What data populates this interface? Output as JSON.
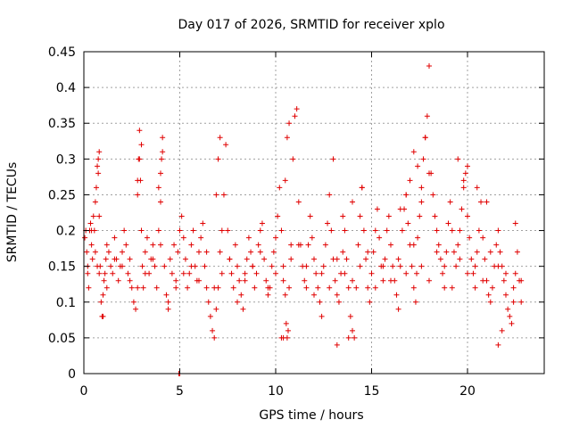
{
  "chart_data": {
    "type": "scatter",
    "title": "Day 017 of 2026, SRMTID for receiver xplo",
    "xlabel": "GPS time / hours",
    "ylabel": "SRMTID / TECUs",
    "xlim": [
      0,
      24
    ],
    "ylim": [
      0,
      0.45
    ],
    "xticks": [
      0,
      5,
      10,
      15,
      20
    ],
    "xtick_labels": [
      "0",
      "5",
      "10",
      "15",
      "20"
    ],
    "yticks": [
      0,
      0.05,
      0.1,
      0.15,
      0.2,
      0.25,
      0.3,
      0.35,
      0.4,
      0.45
    ],
    "ytick_labels": [
      "0",
      "0.05",
      "0.1",
      "0.15",
      "0.2",
      "0.25",
      "0.3",
      "0.35",
      "0.4",
      "0.45"
    ],
    "grid": true,
    "marker": "+",
    "color": "#e00000",
    "series": [
      {
        "x": [
          0.05,
          0.1,
          0.15,
          0.2,
          0.25,
          0.3,
          0.35,
          0.4,
          0.45,
          0.5,
          0.55,
          0.6,
          0.65,
          0.7,
          0.75,
          0.8,
          0.85,
          0.9,
          0.95,
          1.0,
          1.05,
          1.1,
          1.15,
          1.2,
          1.3,
          1.4,
          1.5,
          1.6,
          1.7,
          1.8,
          1.9,
          2.0,
          2.1,
          2.2,
          2.3,
          2.4,
          2.5,
          2.6,
          2.7,
          2.8,
          2.85,
          2.9,
          2.95,
          3.0,
          3.05,
          3.1,
          3.2,
          3.3,
          3.4,
          3.5,
          3.6,
          3.7,
          3.8,
          3.9,
          4.0,
          4.05,
          4.1,
          4.2,
          4.3,
          4.4,
          4.5,
          4.6,
          4.7,
          4.8,
          4.9,
          5.0,
          5.1,
          5.2,
          5.3,
          5.4,
          5.5,
          5.6,
          5.7,
          5.8,
          5.9,
          6.0,
          6.1,
          6.2,
          6.3,
          6.4,
          6.5,
          6.6,
          6.7,
          6.8,
          6.9,
          7.0,
          7.1,
          7.2,
          7.3,
          7.4,
          7.5,
          7.6,
          7.7,
          7.8,
          7.9,
          8.0,
          8.1,
          8.2,
          8.3,
          8.4,
          8.5,
          8.6,
          8.7,
          8.8,
          8.9,
          9.0,
          9.1,
          9.2,
          9.3,
          9.4,
          9.5,
          9.6,
          9.7,
          9.8,
          9.9,
          10.0,
          10.1,
          10.2,
          10.3,
          10.4,
          10.5,
          10.55,
          10.6,
          10.65,
          10.7,
          10.8,
          10.9,
          11.0,
          11.1,
          11.2,
          11.3,
          11.4,
          11.5,
          11.6,
          11.7,
          11.8,
          11.9,
          12.0,
          12.1,
          12.2,
          12.3,
          12.4,
          12.5,
          12.6,
          12.7,
          12.8,
          12.9,
          13.0,
          13.1,
          13.2,
          13.3,
          13.4,
          13.5,
          13.6,
          13.7,
          13.8,
          13.9,
          14.0,
          14.1,
          14.2,
          14.3,
          14.4,
          14.5,
          14.6,
          14.7,
          14.8,
          14.9,
          15.0,
          15.1,
          15.2,
          15.3,
          15.4,
          15.5,
          15.6,
          15.7,
          15.8,
          15.9,
          16.0,
          16.1,
          16.2,
          16.3,
          16.4,
          16.5,
          16.6,
          16.7,
          16.8,
          16.9,
          17.0,
          17.1,
          17.2,
          17.3,
          17.35,
          17.4,
          17.5,
          17.6,
          17.7,
          17.8,
          17.9,
          18.0,
          18.1,
          18.2,
          18.3,
          18.4,
          18.5,
          18.6,
          18.7,
          18.8,
          18.9,
          19.0,
          19.1,
          19.2,
          19.3,
          19.4,
          19.5,
          19.6,
          19.7,
          19.8,
          19.9,
          20.0,
          20.1,
          20.2,
          20.3,
          20.4,
          20.5,
          20.6,
          20.7,
          20.8,
          20.9,
          21.0,
          21.1,
          21.2,
          21.3,
          21.4,
          21.5,
          21.6,
          21.7,
          21.8,
          21.9,
          22.0,
          22.1,
          22.2,
          22.3,
          22.4,
          22.5,
          22.6,
          22.7,
          22.8,
          0.2,
          0.4,
          0.6,
          0.8,
          1.0,
          1.2,
          1.6,
          2.0,
          2.4,
          2.8,
          3.2,
          3.6,
          4.0,
          4.4,
          4.8,
          5.2,
          5.6,
          6.0,
          6.4,
          6.8,
          7.2,
          7.6,
          8.0,
          8.4,
          8.8,
          9.2,
          9.6,
          10.0,
          10.4,
          10.8,
          11.2,
          11.6,
          12.0,
          12.4,
          12.8,
          13.2,
          13.6,
          14.0,
          14.4,
          14.8,
          15.2,
          15.6,
          16.0,
          16.4,
          16.8,
          17.2,
          17.6,
          18.0,
          18.4,
          18.8,
          19.2,
          19.6,
          20.0,
          20.4,
          20.8,
          21.2,
          21.6,
          22.0,
          22.4,
          22.8,
          0.7,
          0.75,
          0.8,
          2.8,
          2.9,
          3.0,
          3.9,
          4.0,
          4.1,
          6.9,
          7.0,
          7.1,
          10.5,
          10.6,
          10.7,
          13.0,
          13.5,
          14.0,
          14.5,
          16.5,
          16.8,
          17.0,
          17.2,
          17.4,
          17.6,
          17.8,
          18.0,
          19.5,
          19.8,
          20.0,
          20.5,
          21.0,
          22.5,
          4.95,
          5.0,
          10.3,
          10.4,
          13.2,
          13.8,
          21.6,
          21.8
        ],
        "y": [
          0.19,
          0.2,
          0.17,
          0.14,
          0.12,
          0.2,
          0.21,
          0.18,
          0.16,
          0.22,
          0.2,
          0.24,
          0.26,
          0.29,
          0.3,
          0.22,
          0.15,
          0.1,
          0.08,
          0.11,
          0.13,
          0.14,
          0.16,
          0.18,
          0.17,
          0.15,
          0.14,
          0.19,
          0.16,
          0.13,
          0.15,
          0.17,
          0.2,
          0.18,
          0.14,
          0.16,
          0.12,
          0.1,
          0.09,
          0.25,
          0.3,
          0.34,
          0.27,
          0.2,
          0.15,
          0.12,
          0.17,
          0.19,
          0.14,
          0.16,
          0.18,
          0.15,
          0.12,
          0.2,
          0.24,
          0.3,
          0.33,
          0.15,
          0.11,
          0.09,
          0.16,
          0.14,
          0.18,
          0.13,
          0.17,
          0.2,
          0.22,
          0.19,
          0.16,
          0.12,
          0.14,
          0.18,
          0.2,
          0.15,
          0.13,
          0.17,
          0.19,
          0.21,
          0.15,
          0.12,
          0.1,
          0.08,
          0.06,
          0.05,
          0.09,
          0.12,
          0.17,
          0.2,
          0.25,
          0.32,
          0.2,
          0.16,
          0.14,
          0.12,
          0.18,
          0.15,
          0.13,
          0.11,
          0.09,
          0.14,
          0.16,
          0.19,
          0.17,
          0.15,
          0.12,
          0.14,
          0.18,
          0.2,
          0.21,
          0.16,
          0.13,
          0.11,
          0.12,
          0.15,
          0.17,
          0.19,
          0.22,
          0.26,
          0.2,
          0.15,
          0.11,
          0.07,
          0.05,
          0.06,
          0.12,
          0.18,
          0.3,
          0.36,
          0.37,
          0.24,
          0.18,
          0.15,
          0.13,
          0.12,
          0.18,
          0.22,
          0.19,
          0.16,
          0.14,
          0.12,
          0.1,
          0.08,
          0.15,
          0.18,
          0.21,
          0.25,
          0.2,
          0.16,
          0.13,
          0.11,
          0.1,
          0.14,
          0.17,
          0.2,
          0.16,
          0.12,
          0.08,
          0.06,
          0.05,
          0.12,
          0.18,
          0.22,
          0.26,
          0.2,
          0.16,
          0.12,
          0.1,
          0.14,
          0.17,
          0.2,
          0.23,
          0.19,
          0.15,
          0.13,
          0.16,
          0.2,
          0.22,
          0.18,
          0.15,
          0.13,
          0.11,
          0.09,
          0.15,
          0.2,
          0.23,
          0.25,
          0.21,
          0.18,
          0.15,
          0.12,
          0.1,
          0.14,
          0.19,
          0.22,
          0.26,
          0.3,
          0.33,
          0.36,
          0.43,
          0.28,
          0.25,
          0.22,
          0.2,
          0.18,
          0.16,
          0.14,
          0.12,
          0.17,
          0.21,
          0.24,
          0.2,
          0.17,
          0.15,
          0.18,
          0.2,
          0.23,
          0.26,
          0.28,
          0.22,
          0.19,
          0.16,
          0.14,
          0.12,
          0.17,
          0.2,
          0.24,
          0.19,
          0.16,
          0.13,
          0.11,
          0.1,
          0.12,
          0.15,
          0.18,
          0.2,
          0.17,
          0.15,
          0.13,
          0.11,
          0.09,
          0.08,
          0.07,
          0.1,
          0.14,
          0.17,
          0.13,
          0.1,
          0.15,
          0.2,
          0.17,
          0.14,
          0.08,
          0.12,
          0.16,
          0.15,
          0.13,
          0.12,
          0.14,
          0.16,
          0.18,
          0.1,
          0.12,
          0.14,
          0.15,
          0.13,
          0.17,
          0.12,
          0.14,
          0.16,
          0.1,
          0.13,
          0.15,
          0.17,
          0.12,
          0.14,
          0.13,
          0.16,
          0.18,
          0.15,
          0.11,
          0.14,
          0.12,
          0.16,
          0.14,
          0.13,
          0.15,
          0.17,
          0.12,
          0.15,
          0.13,
          0.16,
          0.14,
          0.18,
          0.15,
          0.13,
          0.17,
          0.15,
          0.12,
          0.16,
          0.14,
          0.15,
          0.13,
          0.17,
          0.15,
          0.14,
          0.12,
          0.13,
          0.15,
          0.28,
          0.31,
          0.27,
          0.3,
          0.32,
          0.26,
          0.28,
          0.31,
          0.25,
          0.3,
          0.33,
          0.27,
          0.33,
          0.35,
          0.3,
          0.22,
          0.24,
          0.26,
          0.23,
          0.25,
          0.27,
          0.31,
          0.29,
          0.24,
          0.33,
          0.28,
          0.3,
          0.27,
          0.29,
          0.26,
          0.24,
          0.21,
          0.0,
          0.0,
          0.05,
          0.05,
          0.04,
          0.05,
          0.04,
          0.06
        ]
      }
    ]
  }
}
